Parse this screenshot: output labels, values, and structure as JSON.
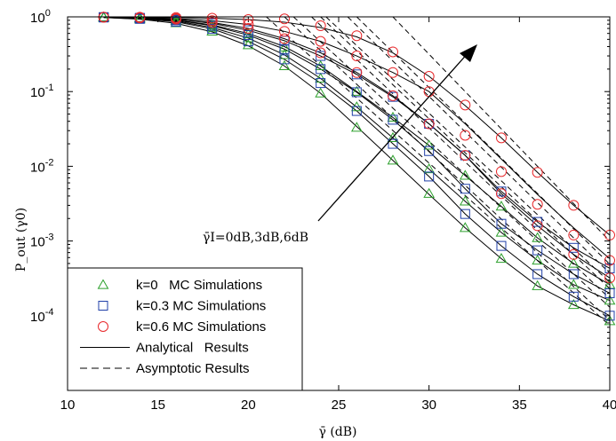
{
  "chart_data": {
    "type": "line",
    "xlabel": "γ̄ (dB)",
    "ylabel": "P_out (γ0)",
    "xlim": [
      10,
      40
    ],
    "ylim": [
      1e-05,
      1
    ],
    "yscale": "log",
    "x_ticks": [
      10,
      15,
      20,
      25,
      30,
      35,
      40
    ],
    "y_ticks": [
      {
        "value": 0.0001,
        "base": "10",
        "exp": "-4"
      },
      {
        "value": 0.001,
        "base": "10",
        "exp": "-3"
      },
      {
        "value": 0.01,
        "base": "10",
        "exp": "-2"
      },
      {
        "value": 0.1,
        "base": "10",
        "exp": "-1"
      },
      {
        "value": 1,
        "base": "10",
        "exp": "0"
      }
    ],
    "annotation": "γ̄I=0dB,3dB,6dB",
    "legend": {
      "placement": "bottom-left",
      "entries": [
        {
          "label": "k=0   MC Simulations",
          "marker": "triangle",
          "color": "#2ca02c"
        },
        {
          "label": "k=0.3 MC Simulations",
          "marker": "square",
          "color": "#1f3fa8"
        },
        {
          "label": "k=0.6 MC Simulations",
          "marker": "circle",
          "color": "#e8282b"
        },
        {
          "label": "Analytical   Results",
          "line": "solid",
          "color": "#000000"
        },
        {
          "label": "Asymptotic Results",
          "line": "dashed",
          "color": "#000000"
        }
      ]
    },
    "x": [
      12,
      14,
      16,
      18,
      20,
      22,
      24,
      26,
      28,
      30,
      32,
      34,
      36,
      38,
      40
    ],
    "series": [
      {
        "k": 0,
        "gamma_I": 0,
        "marker": "triangle",
        "color": "#2ca02c",
        "values": [
          0.98,
          0.93,
          0.83,
          0.64,
          0.42,
          0.22,
          0.095,
          0.033,
          0.012,
          0.0043,
          0.0015,
          0.00058,
          0.00025,
          0.00014,
          8.5e-05
        ]
      },
      {
        "k": 0,
        "gamma_I": 3,
        "marker": "triangle",
        "color": "#2ca02c",
        "values": [
          0.99,
          0.96,
          0.88,
          0.72,
          0.52,
          0.31,
          0.15,
          0.062,
          0.024,
          0.0092,
          0.0034,
          0.0013,
          0.00055,
          0.00026,
          0.00016
        ]
      },
      {
        "k": 0,
        "gamma_I": 6,
        "marker": "triangle",
        "color": "#2ca02c",
        "values": [
          0.99,
          0.97,
          0.9,
          0.77,
          0.59,
          0.39,
          0.22,
          0.1,
          0.045,
          0.019,
          0.0075,
          0.0029,
          0.0011,
          0.0005,
          0.00026
        ]
      },
      {
        "k": 0.3,
        "gamma_I": 0,
        "marker": "square",
        "color": "#1f3fa8",
        "values": [
          0.98,
          0.94,
          0.86,
          0.69,
          0.47,
          0.27,
          0.13,
          0.055,
          0.02,
          0.0073,
          0.0023,
          0.00086,
          0.00036,
          0.00018,
          0.0001
        ]
      },
      {
        "k": 0.3,
        "gamma_I": 3,
        "marker": "square",
        "color": "#1f3fa8",
        "values": [
          0.99,
          0.96,
          0.9,
          0.76,
          0.57,
          0.37,
          0.2,
          0.098,
          0.042,
          0.016,
          0.005,
          0.0017,
          0.00075,
          0.00036,
          0.0002
        ]
      },
      {
        "k": 0.3,
        "gamma_I": 6,
        "marker": "square",
        "color": "#1f3fa8",
        "values": [
          0.99,
          0.97,
          0.92,
          0.82,
          0.66,
          0.48,
          0.3,
          0.17,
          0.085,
          0.037,
          0.014,
          0.0046,
          0.0018,
          0.00081,
          0.00043
        ]
      },
      {
        "k": 0.6,
        "gamma_I": 0,
        "marker": "circle",
        "color": "#e8282b",
        "values": [
          0.99,
          0.97,
          0.93,
          0.84,
          0.7,
          0.51,
          0.33,
          0.18,
          0.088,
          0.037,
          0.014,
          0.0043,
          0.0016,
          0.00066,
          0.00032
        ]
      },
      {
        "k": 0.6,
        "gamma_I": 3,
        "marker": "circle",
        "color": "#e8282b",
        "values": [
          0.99,
          0.98,
          0.95,
          0.89,
          0.79,
          0.64,
          0.47,
          0.3,
          0.18,
          0.1,
          0.026,
          0.0085,
          0.0031,
          0.0012,
          0.00055
        ]
      },
      {
        "k": 0.6,
        "gamma_I": 6,
        "marker": "circle",
        "color": "#e8282b",
        "values": [
          0.99,
          0.99,
          0.98,
          0.96,
          0.92,
          0.94,
          0.76,
          0.56,
          0.34,
          0.16,
          0.066,
          0.024,
          0.0083,
          0.003,
          0.0012
        ]
      }
    ],
    "analytical_curves": [
      {
        "values": [
          0.98,
          0.93,
          0.82,
          0.63,
          0.41,
          0.22,
          0.095,
          0.034,
          0.012,
          0.0042,
          0.0015,
          0.00058,
          0.00025,
          0.00014,
          8.5e-05
        ]
      },
      {
        "values": [
          0.99,
          0.96,
          0.88,
          0.72,
          0.52,
          0.31,
          0.15,
          0.062,
          0.024,
          0.0092,
          0.0034,
          0.0013,
          0.00055,
          0.00026,
          0.00016
        ]
      },
      {
        "values": [
          0.99,
          0.97,
          0.91,
          0.78,
          0.6,
          0.4,
          0.22,
          0.1,
          0.045,
          0.019,
          0.0075,
          0.0029,
          0.0011,
          0.0005,
          0.00026
        ]
      },
      {
        "values": [
          0.98,
          0.94,
          0.86,
          0.69,
          0.47,
          0.27,
          0.13,
          0.055,
          0.02,
          0.0073,
          0.0023,
          0.00086,
          0.00036,
          0.00018,
          0.0001
        ]
      },
      {
        "values": [
          0.99,
          0.96,
          0.9,
          0.76,
          0.57,
          0.37,
          0.2,
          0.098,
          0.042,
          0.016,
          0.005,
          0.0017,
          0.00075,
          0.00036,
          0.0002
        ]
      },
      {
        "values": [
          0.99,
          0.97,
          0.93,
          0.82,
          0.66,
          0.48,
          0.3,
          0.17,
          0.085,
          0.037,
          0.014,
          0.0046,
          0.0018,
          0.00081,
          0.00043
        ]
      },
      {
        "values": [
          0.99,
          0.97,
          0.93,
          0.84,
          0.7,
          0.51,
          0.33,
          0.18,
          0.088,
          0.037,
          0.014,
          0.0043,
          0.0016,
          0.00066,
          0.00032
        ]
      },
      {
        "values": [
          0.99,
          0.98,
          0.95,
          0.89,
          0.79,
          0.64,
          0.47,
          0.3,
          0.18,
          0.1,
          0.037,
          0.0125,
          0.0042,
          0.0015,
          0.00058
        ]
      },
      {
        "values": [
          0.99,
          0.99,
          0.98,
          0.96,
          0.92,
          0.85,
          0.72,
          0.54,
          0.33,
          0.16,
          0.065,
          0.024,
          0.0083,
          0.003,
          0.0012
        ]
      }
    ],
    "asymptotic_curves": [
      {
        "x": [
          21,
          40
        ],
        "values": [
          1.0,
          7.4e-05
        ]
      },
      {
        "x": [
          22.5,
          40
        ],
        "values": [
          1.0,
          0.00013
        ]
      },
      {
        "x": [
          24,
          40
        ],
        "values": [
          1.0,
          0.00023
        ]
      },
      {
        "x": [
          22,
          40
        ],
        "values": [
          1.0,
          8.7e-05
        ]
      },
      {
        "x": [
          23.5,
          40
        ],
        "values": [
          1.0,
          0.00017
        ]
      },
      {
        "x": [
          25.5,
          40
        ],
        "values": [
          1.0,
          0.00037
        ]
      },
      {
        "x": [
          24.3,
          40
        ],
        "values": [
          1.0,
          0.00028
        ]
      },
      {
        "x": [
          26,
          40
        ],
        "values": [
          1.0,
          0.00049
        ]
      },
      {
        "x": [
          28,
          40
        ],
        "values": [
          1.0,
          0.001
        ]
      }
    ]
  }
}
